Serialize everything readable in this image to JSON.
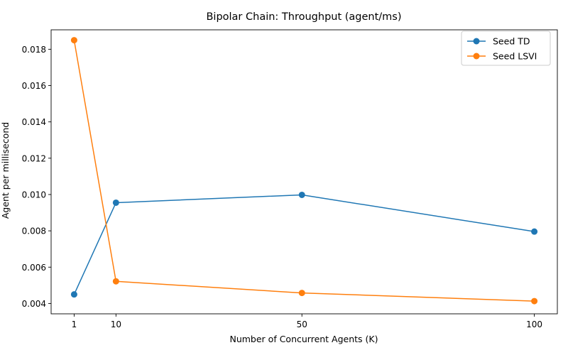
{
  "chart_data": {
    "type": "line",
    "title": "Bipolar Chain: Throughput (agent/ms)",
    "xlabel": "Number of Concurrent Agents (K)",
    "ylabel": "Agent per millisecond",
    "x": [
      1,
      10,
      50,
      100
    ],
    "x_tick_labels": [
      "1",
      "10",
      "50",
      "100"
    ],
    "y_ticks": [
      0.004,
      0.006,
      0.008,
      0.01,
      0.012,
      0.014,
      0.016,
      0.018
    ],
    "y_tick_labels": [
      "0.004",
      "0.006",
      "0.008",
      "0.010",
      "0.012",
      "0.014",
      "0.016",
      "0.018"
    ],
    "xlim": [
      -3.95,
      104.95
    ],
    "ylim": [
      0.00343,
      0.01907
    ],
    "grid": false,
    "legend_position": "top-right",
    "series": [
      {
        "name": "Seed TD",
        "color": "#1f77b4",
        "values": [
          0.0045,
          0.00955,
          0.00998,
          0.00796
        ]
      },
      {
        "name": "Seed LSVI",
        "color": "#ff7f0e",
        "values": [
          0.0185,
          0.00522,
          0.00458,
          0.00413
        ]
      }
    ]
  }
}
